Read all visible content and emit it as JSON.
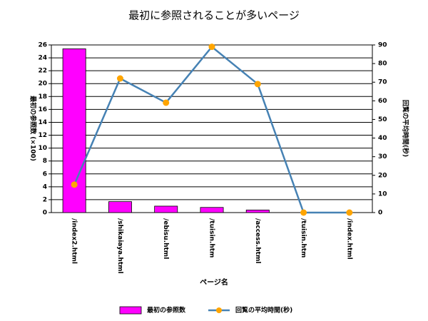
{
  "chart_data": {
    "type": "bar",
    "title": "最初に参照されることが多いページ",
    "x_label": "ページ名",
    "y_label": "最初の参照数 (×100)",
    "y2_label": "回覧の平均時間(秒)",
    "categories": [
      "/index2.html",
      "/shikaiaya.html",
      "/ebisu.html",
      "/tuisin.htm",
      "/access.html",
      "/tuisin.htm",
      "/index.html"
    ],
    "series": [
      {
        "name": "最初の参照数",
        "type": "bar",
        "color": "#ff00ff",
        "values": [
          25.4,
          1.7,
          1.0,
          0.8,
          0.4,
          0,
          0
        ]
      },
      {
        "name": "回覧の平均時間(秒)",
        "type": "line",
        "axis": "y2",
        "color": "#4682b4",
        "marker_color": "#ffa500",
        "values": [
          15,
          72,
          59,
          89,
          69,
          0,
          0
        ]
      }
    ],
    "ylim": [
      0,
      26
    ],
    "yticks": [
      0,
      2,
      4,
      6,
      8,
      10,
      12,
      14,
      16,
      18,
      20,
      22,
      24,
      26
    ],
    "y2lim": [
      0,
      90
    ],
    "y2ticks": [
      0,
      10,
      20,
      30,
      40,
      50,
      60,
      70,
      80,
      90
    ],
    "grid": true,
    "legend": "bottom"
  }
}
